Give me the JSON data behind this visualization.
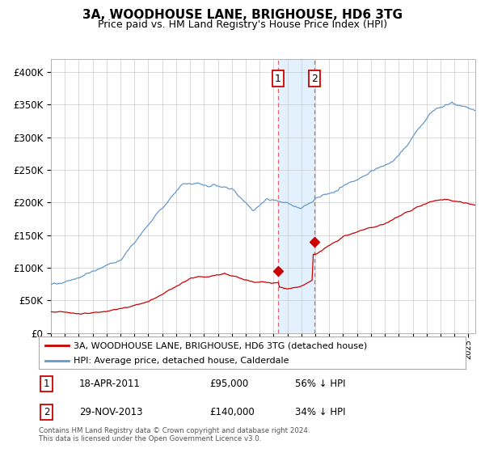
{
  "title": "3A, WOODHOUSE LANE, BRIGHOUSE, HD6 3TG",
  "subtitle": "Price paid vs. HM Land Registry's House Price Index (HPI)",
  "legend_line1": "3A, WOODHOUSE LANE, BRIGHOUSE, HD6 3TG (detached house)",
  "legend_line2": "HPI: Average price, detached house, Calderdale",
  "sale1_date": "18-APR-2011",
  "sale1_price": 95000,
  "sale1_pct": "56% ↓ HPI",
  "sale1_year": 2011.3,
  "sale2_date": "29-NOV-2013",
  "sale2_price": 140000,
  "sale2_pct": "34% ↓ HPI",
  "sale2_year": 2013.92,
  "hpi_color": "#6699cc",
  "price_color": "#cc0000",
  "shading_color": "#ddeeff",
  "dashed_color": "#dd6666",
  "footer": "Contains HM Land Registry data © Crown copyright and database right 2024.\nThis data is licensed under the Open Government Licence v3.0.",
  "ylim": [
    0,
    420000
  ],
  "xlim_start": 1995,
  "xlim_end": 2025.5
}
